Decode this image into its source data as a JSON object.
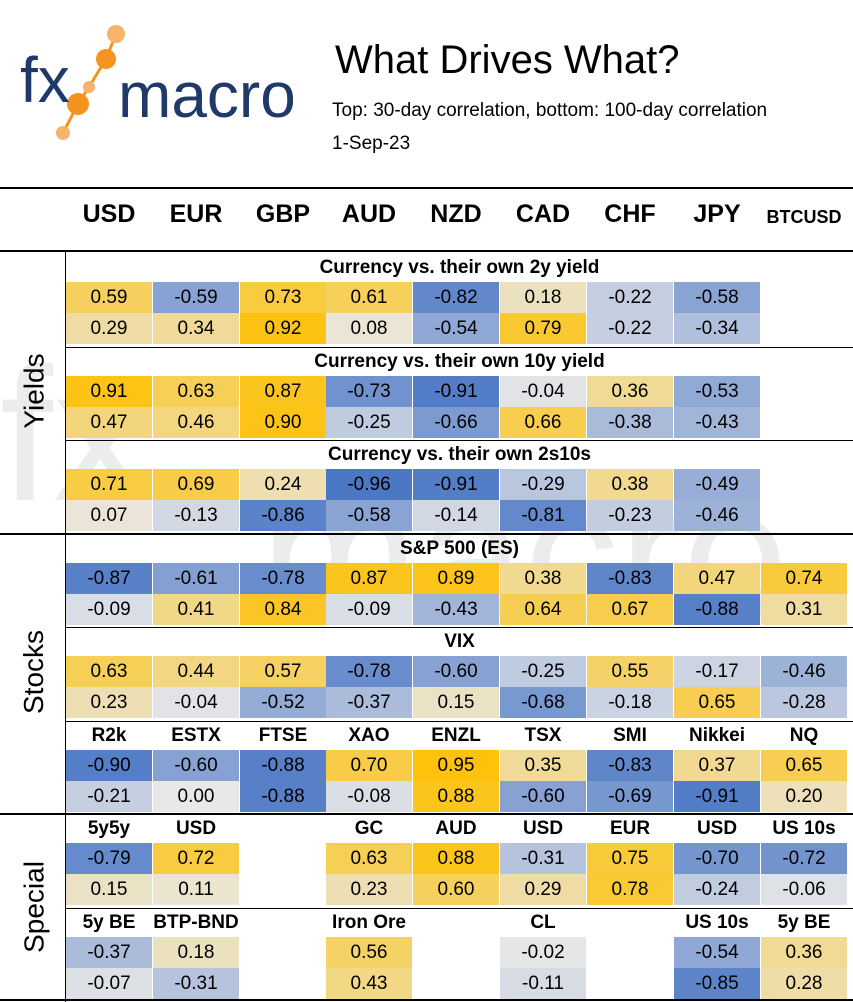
{
  "header": {
    "logo_text_fx": "fx",
    "logo_text_macro": "macro",
    "title": "What Drives What?",
    "subtitle": "Top: 30-day correlation, bottom: 100-day correlation",
    "date": "1-Sep-23"
  },
  "columns": [
    "USD",
    "EUR",
    "GBP",
    "AUD",
    "NZD",
    "CAD",
    "CHF",
    "JPY",
    "BTCUSD"
  ],
  "sections": [
    {
      "label": "Yields"
    },
    {
      "label": "Stocks"
    },
    {
      "label": "Special"
    }
  ],
  "blocks": [
    {
      "title": "Currency vs. their own 2y yield",
      "top": [
        "0.59",
        "-0.59",
        "0.73",
        "0.61",
        "-0.82",
        "0.18",
        "-0.22",
        "-0.58",
        ""
      ],
      "bottom": [
        "0.29",
        "0.34",
        "0.92",
        "0.08",
        "-0.54",
        "0.79",
        "-0.22",
        "-0.34",
        ""
      ]
    },
    {
      "title": "Currency vs. their own 10y yield",
      "top": [
        "0.91",
        "0.63",
        "0.87",
        "-0.73",
        "-0.91",
        "-0.04",
        "0.36",
        "-0.53",
        ""
      ],
      "bottom": [
        "0.47",
        "0.46",
        "0.90",
        "-0.25",
        "-0.66",
        "0.66",
        "-0.38",
        "-0.43",
        ""
      ]
    },
    {
      "title": "Currency vs. their own 2s10s",
      "top": [
        "0.71",
        "0.69",
        "0.24",
        "-0.96",
        "-0.91",
        "-0.29",
        "0.38",
        "-0.49",
        ""
      ],
      "bottom": [
        "0.07",
        "-0.13",
        "-0.86",
        "-0.58",
        "-0.14",
        "-0.81",
        "-0.23",
        "-0.46",
        ""
      ]
    },
    {
      "title": "S&P 500 (ES)",
      "top": [
        "-0.87",
        "-0.61",
        "-0.78",
        "0.87",
        "0.89",
        "0.38",
        "-0.83",
        "0.47",
        "0.74"
      ],
      "bottom": [
        "-0.09",
        "0.41",
        "0.84",
        "-0.09",
        "-0.43",
        "0.64",
        "0.67",
        "-0.88",
        "0.31"
      ]
    },
    {
      "title": "VIX",
      "top": [
        "0.63",
        "0.44",
        "0.57",
        "-0.78",
        "-0.60",
        "-0.25",
        "0.55",
        "-0.17",
        "-0.46"
      ],
      "bottom": [
        "0.23",
        "-0.04",
        "-0.52",
        "-0.37",
        "0.15",
        "-0.68",
        "-0.18",
        "0.65",
        "-0.28"
      ]
    },
    {
      "heads": [
        "R2k",
        "ESTX",
        "FTSE",
        "XAO",
        "ENZL",
        "TSX",
        "SMI",
        "Nikkei",
        "NQ"
      ],
      "top": [
        "-0.90",
        "-0.60",
        "-0.88",
        "0.70",
        "0.95",
        "0.35",
        "-0.83",
        "0.37",
        "0.65"
      ],
      "bottom": [
        "-0.21",
        "0.00",
        "-0.88",
        "-0.08",
        "0.88",
        "-0.60",
        "-0.69",
        "-0.91",
        "0.20"
      ]
    },
    {
      "heads": [
        "5y5y",
        "USD",
        "",
        "GC",
        "AUD",
        "USD",
        "EUR",
        "USD",
        "US 10s"
      ],
      "top": [
        "-0.79",
        "0.72",
        "",
        "0.63",
        "0.88",
        "-0.31",
        "0.75",
        "-0.70",
        "-0.72"
      ],
      "bottom": [
        "0.15",
        "0.11",
        "",
        "0.23",
        "0.60",
        "0.29",
        "0.78",
        "-0.24",
        "-0.06"
      ]
    },
    {
      "heads": [
        "5y BE",
        "BTP-BND",
        "",
        "Iron Ore",
        "",
        "CL",
        "",
        "US 10s",
        "5y BE"
      ],
      "top": [
        "-0.37",
        "0.18",
        "",
        "0.56",
        "",
        "-0.02",
        "",
        "-0.54",
        "0.36"
      ],
      "bottom": [
        "-0.07",
        "-0.31",
        "",
        "0.43",
        "",
        "-0.11",
        "",
        "-0.85",
        "0.28"
      ]
    }
  ],
  "colors": {
    "positive": "#ffc000",
    "negative": "#4472c4",
    "neutral": "#e8e8e8",
    "logo_orange": "#f4931e",
    "logo_navy": "#1f3a68"
  }
}
